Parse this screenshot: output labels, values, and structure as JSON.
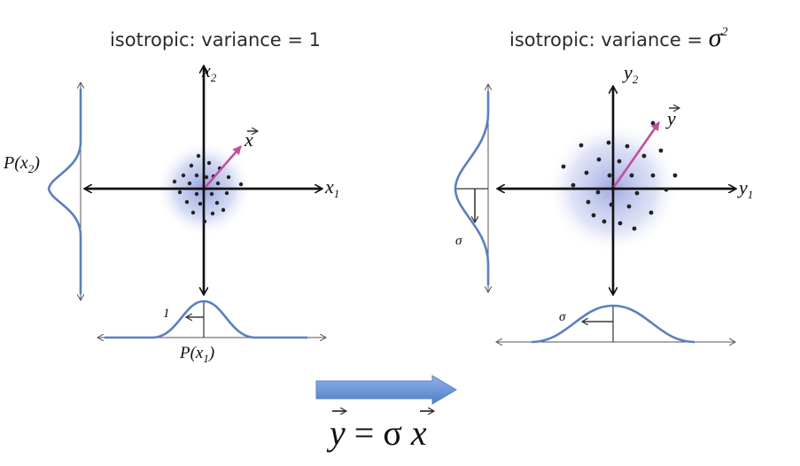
{
  "left_panel": {
    "title": "isotropic: variance = 1",
    "x2_axis_label": "x",
    "x2_axis_sub": "2",
    "x1_axis_label": "x",
    "x1_axis_sub": "1",
    "vector_label": "x",
    "marginal_y_label": "P(x",
    "marginal_y_sub": "2",
    "marginal_y_close": ")",
    "marginal_x_label": "P(x",
    "marginal_x_sub": "1",
    "marginal_x_close": ")",
    "width_marker": "1"
  },
  "right_panel": {
    "title": "isotropic: variance = ",
    "title_symbol": "σ",
    "title_exp": "2",
    "y2_axis_label": "y",
    "y2_axis_sub": "2",
    "y1_axis_label": "y",
    "y1_axis_sub": "1",
    "vector_label": "y",
    "width_marker_vertical": "σ",
    "width_marker_horizontal": "σ"
  },
  "equation": {
    "lhs": "y",
    "eq": " = σ ",
    "rhs": "x"
  },
  "colors": {
    "curve": "#5b7fc0",
    "vector": "#c0509c",
    "arrow_fill": "#6a93d2",
    "blob": "#5a6fd0"
  }
}
